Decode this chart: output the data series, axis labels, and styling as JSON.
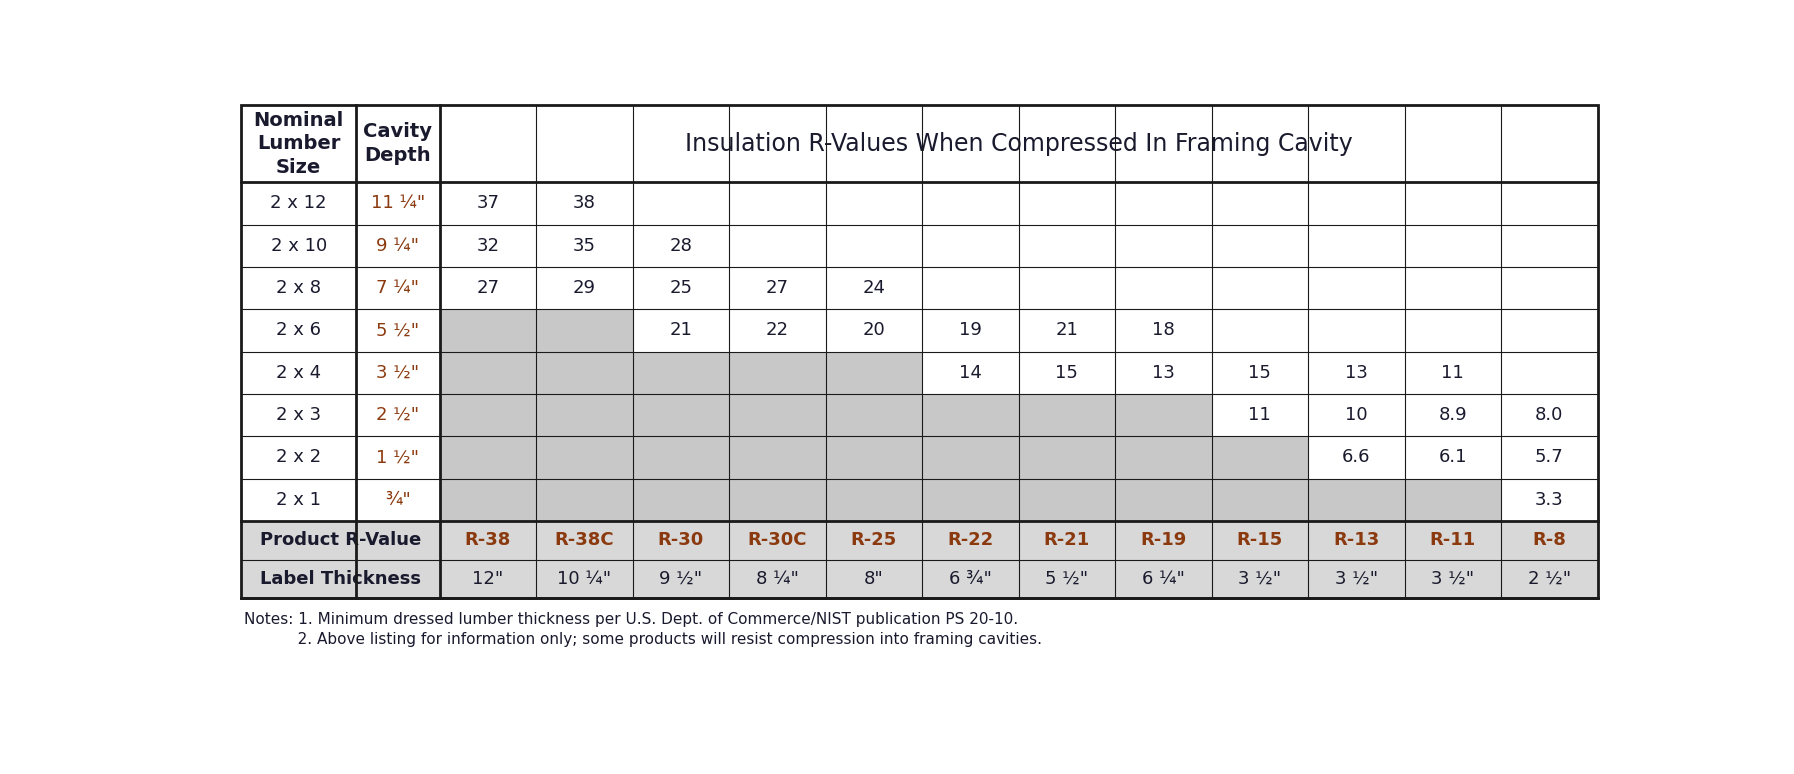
{
  "title": "Insulation R-Values When Compressed In Framing Cavity",
  "col_header1": "Nominal\nLumber\nSize",
  "col_header2": "Cavity\nDepth",
  "product_rvalue_label": "Product R-Value",
  "label_thickness_label": "Label Thickness",
  "lumber_sizes": [
    "2 x 12",
    "2 x 10",
    "2 x 8",
    "2 x 6",
    "2 x 4",
    "2 x 3",
    "2 x 2",
    "2 x 1"
  ],
  "cavity_depths": [
    "11 ¼\"",
    "9 ¼\"",
    "7 ¼\"",
    "5 ½\"",
    "3 ½\"",
    "2 ½\"",
    "1 ½\"",
    "¾\""
  ],
  "r_values": [
    "R-38",
    "R-38C",
    "R-30",
    "R-30C",
    "R-25",
    "R-22",
    "R-21",
    "R-19",
    "R-15",
    "R-13",
    "R-11",
    "R-8"
  ],
  "label_thickness": [
    "12\"",
    "10 ¼\"",
    "9 ½\"",
    "8 ¼\"",
    "8\"",
    "6 ¾\"",
    "5 ½\"",
    "6 ¼\"",
    "3 ½\"",
    "3 ½\"",
    "3 ½\"",
    "2 ½\""
  ],
  "cell_data": {
    "0": {
      "0": "37",
      "1": "38",
      "2": "",
      "3": "",
      "4": "",
      "5": "",
      "6": "",
      "7": "",
      "8": "",
      "9": "",
      "10": "",
      "11": ""
    },
    "1": {
      "0": "32",
      "1": "35",
      "2": "28",
      "3": "",
      "4": "",
      "5": "",
      "6": "",
      "7": "",
      "8": "",
      "9": "",
      "10": "",
      "11": ""
    },
    "2": {
      "0": "27",
      "1": "29",
      "2": "25",
      "3": "27",
      "4": "24",
      "5": "",
      "6": "",
      "7": "",
      "8": "",
      "9": "",
      "10": "",
      "11": ""
    },
    "3": {
      "0": "",
      "1": "",
      "2": "21",
      "3": "22",
      "4": "20",
      "5": "19",
      "6": "21",
      "7": "18",
      "8": "",
      "9": "",
      "10": "",
      "11": ""
    },
    "4": {
      "0": "",
      "1": "",
      "2": "",
      "3": "",
      "4": "",
      "5": "14",
      "6": "15",
      "7": "13",
      "8": "15",
      "9": "13",
      "10": "11",
      "11": ""
    },
    "5": {
      "0": "",
      "1": "",
      "2": "",
      "3": "",
      "4": "",
      "5": "",
      "6": "",
      "7": "",
      "8": "11",
      "9": "10",
      "10": "8.9",
      "11": "8.0"
    },
    "6": {
      "0": "",
      "1": "",
      "2": "",
      "3": "",
      "4": "",
      "5": "",
      "6": "",
      "7": "",
      "8": "",
      "9": "6.6",
      "10": "6.1",
      "11": "5.7"
    },
    "7": {
      "0": "",
      "1": "",
      "2": "",
      "3": "",
      "4": "",
      "5": "",
      "6": "",
      "7": "",
      "8": "",
      "9": "",
      "10": "",
      "11": "3.3"
    }
  },
  "gray_start": [
    3,
    3,
    4,
    4,
    4,
    5,
    5,
    5,
    6,
    7,
    7,
    9
  ],
  "gray_shade": "#c8c8c8",
  "white": "#ffffff",
  "border_color": "#1a1a1a",
  "title_color": "#1a1a2e",
  "lumber_text_color": "#1a1a2e",
  "depth_text_color": "#8b3a0f",
  "rvalue_color": "#8b3a0f",
  "cell_text_color": "#1a1a2e",
  "bottom_row_bg": "#d8d8d8",
  "notes_line1": "Notes: 1. Minimum dressed lumber thickness per U.S. Dept. of Commerce/NIST publication PS 20-10.",
  "notes_line2": "           2. Above listing for information only; some products will resist compression into framing cavities.",
  "notes_color": "#1a1a2e",
  "fig_w": 17.94,
  "fig_h": 7.74,
  "dpi": 100
}
